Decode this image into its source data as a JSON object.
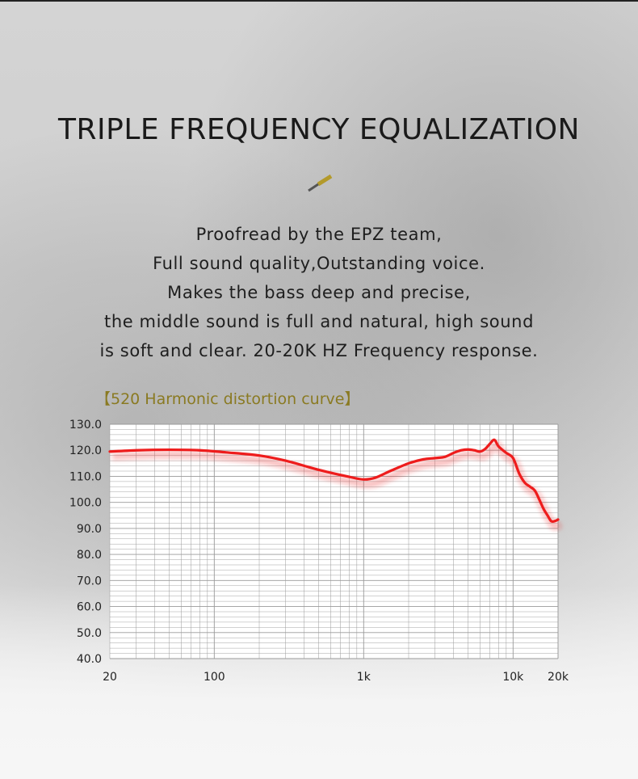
{
  "header": {
    "title": "TRIPLE FREQUENCY EQUALIZATION",
    "divider_icon": "slash-divider-icon",
    "description_lines": [
      "Proofread by the EPZ team,",
      "Full sound quality,Outstanding voice.",
      "Makes the bass deep and precise,",
      "the middle sound is full and natural, high sound",
      "is soft and clear. 20-20K HZ Frequency response."
    ]
  },
  "colors": {
    "curve": "#ee1c1c",
    "chart_title": "#8a7a22",
    "title": "#1a1a1a",
    "grid": "#9a9a9a"
  },
  "chart_data": {
    "type": "line",
    "title": "【520 Harmonic distortion curve】",
    "xscale": "log",
    "xlim": [
      20,
      20000
    ],
    "ylim": [
      40,
      130
    ],
    "x_tick_values": [
      20,
      100,
      1000,
      10000,
      20000
    ],
    "x_tick_labels": [
      "20",
      "100",
      "1k",
      "10k",
      "20k"
    ],
    "y_tick_values": [
      40,
      50,
      60,
      70,
      80,
      90,
      100,
      110,
      120,
      130
    ],
    "y_tick_labels": [
      "40.0",
      "50.0",
      "60.0",
      "70.0",
      "80.0",
      "90.0",
      "100.0",
      "110.0",
      "120.0",
      "130.0"
    ],
    "grid": true,
    "xlabel": "",
    "ylabel": "",
    "series": [
      {
        "name": "Frequency response",
        "x": [
          20,
          30,
          50,
          80,
          120,
          200,
          300,
          500,
          800,
          1000,
          1200,
          1500,
          2000,
          2500,
          3000,
          3500,
          4000,
          4500,
          5000,
          5500,
          6000,
          6500,
          7000,
          7500,
          8000,
          9000,
          10000,
          11000,
          12000,
          13000,
          14000,
          15000,
          16000,
          17000,
          18000,
          19000,
          20000
        ],
        "y": [
          119.5,
          120,
          120.2,
          120,
          119.2,
          118,
          116,
          112.5,
          109.8,
          108.8,
          109.5,
          112,
          115,
          116.5,
          117,
          117.5,
          119,
          120,
          120.3,
          120,
          119.5,
          120.5,
          122.5,
          124,
          121.5,
          119,
          117,
          111,
          107.5,
          106,
          104.5,
          101,
          97.5,
          95,
          92.8,
          92.8,
          93.4
        ]
      }
    ]
  }
}
